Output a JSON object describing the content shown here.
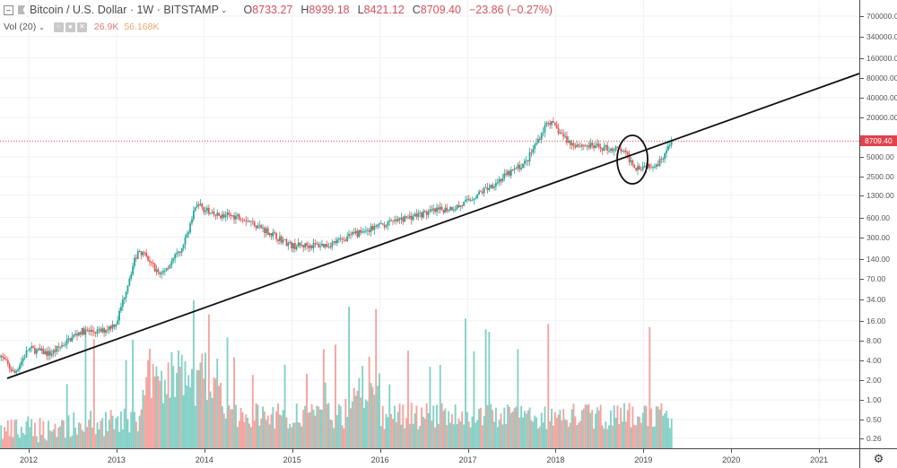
{
  "header": {
    "symbol": "Bitcoin / U.S. Dollar · 1W · BITSTAMP",
    "ohlc": [
      {
        "key": "O",
        "value": "8733.27"
      },
      {
        "key": "H",
        "value": "8939.18"
      },
      {
        "key": "L",
        "value": "8421.12"
      },
      {
        "key": "C",
        "value": "8709.40"
      }
    ],
    "change": "−23.86 (−0.27%)"
  },
  "volume_legend": {
    "label": "Vol (20)",
    "value1": "26.9K",
    "value2": "56.168K"
  },
  "price_axis": {
    "ticks": [
      "700000.00",
      "340000.00",
      "160000.00",
      "80000.00",
      "40000.00",
      "20000.00",
      "5000.00",
      "2500.00",
      "1300.00",
      "600.00",
      "300.00",
      "140.00",
      "70.00",
      "34.00",
      "16.00",
      "8.00",
      "4.00",
      "2.00",
      "1.00",
      "0.50",
      "0.26"
    ],
    "last_price_label": "8709.40"
  },
  "time_axis": {
    "years": [
      "2012",
      "2013",
      "2014",
      "2015",
      "2016",
      "2017",
      "2018",
      "2019",
      "2020",
      "2021"
    ]
  },
  "colors": {
    "up": "#26a69a",
    "down": "#ef5350",
    "up_volume": "#85d1c6",
    "down_volume": "#f4a49f",
    "last_price": "#e0434c",
    "trendline": "#111111",
    "grid": "#f0f2f5"
  },
  "annotations": {
    "trendline": {
      "from": {
        "date": "2011-11",
        "price": 2.0
      },
      "to": {
        "date": "2021-06",
        "price": 110000
      }
    },
    "ellipse": {
      "center_date": "2018-11",
      "center_price": 4500,
      "note": "breakdown below trendline circled"
    }
  },
  "chart_data": {
    "type": "candlestick",
    "title": "Bitcoin / U.S. Dollar · 1W · BITSTAMP",
    "xlabel": "",
    "ylabel": "",
    "y_scale": "log",
    "ylim": [
      0.2,
      1000000
    ],
    "x_ticks": [
      "2012",
      "2013",
      "2014",
      "2015",
      "2016",
      "2017",
      "2018",
      "2019",
      "2020",
      "2021"
    ],
    "y_ticks": [
      700000,
      340000,
      160000,
      80000,
      40000,
      20000,
      5000,
      2500,
      1300,
      600,
      300,
      140,
      70,
      34,
      16,
      8,
      4,
      2,
      1,
      0.5,
      0.26
    ],
    "approx_close_path": [
      {
        "date": "2011-09",
        "price": 5.0
      },
      {
        "date": "2011-11",
        "price": 2.5
      },
      {
        "date": "2012-01",
        "price": 6.0
      },
      {
        "date": "2012-04",
        "price": 5.0
      },
      {
        "date": "2012-08",
        "price": 11.0
      },
      {
        "date": "2012-11",
        "price": 11.0
      },
      {
        "date": "2013-01",
        "price": 15.0
      },
      {
        "date": "2013-03",
        "price": 90.0
      },
      {
        "date": "2013-04",
        "price": 200.0
      },
      {
        "date": "2013-07",
        "price": 80.0
      },
      {
        "date": "2013-10",
        "price": 200.0
      },
      {
        "date": "2013-12",
        "price": 1000.0
      },
      {
        "date": "2014-02",
        "price": 650.0
      },
      {
        "date": "2014-06",
        "price": 620.0
      },
      {
        "date": "2014-10",
        "price": 350.0
      },
      {
        "date": "2015-01",
        "price": 220.0
      },
      {
        "date": "2015-06",
        "price": 230.0
      },
      {
        "date": "2015-11",
        "price": 380.0
      },
      {
        "date": "2016-06",
        "price": 650.0
      },
      {
        "date": "2016-12",
        "price": 900.0
      },
      {
        "date": "2017-06",
        "price": 2500.0
      },
      {
        "date": "2017-09",
        "price": 4200.0
      },
      {
        "date": "2017-12",
        "price": 18000.0
      },
      {
        "date": "2018-03",
        "price": 8000.0
      },
      {
        "date": "2018-07",
        "price": 7000.0
      },
      {
        "date": "2018-10",
        "price": 6400.0
      },
      {
        "date": "2018-12",
        "price": 3500.0
      },
      {
        "date": "2019-03",
        "price": 4000.0
      },
      {
        "date": "2019-05",
        "price": 8709.4
      }
    ],
    "last": {
      "open": 8733.27,
      "high": 8939.18,
      "low": 8421.12,
      "close": 8709.4,
      "change": -23.86,
      "change_pct": -0.27
    },
    "volume": {
      "label": "Vol (20)",
      "current": "26.9K",
      "ma": "56.168K"
    },
    "legend_position": "top-left",
    "grid": true
  }
}
